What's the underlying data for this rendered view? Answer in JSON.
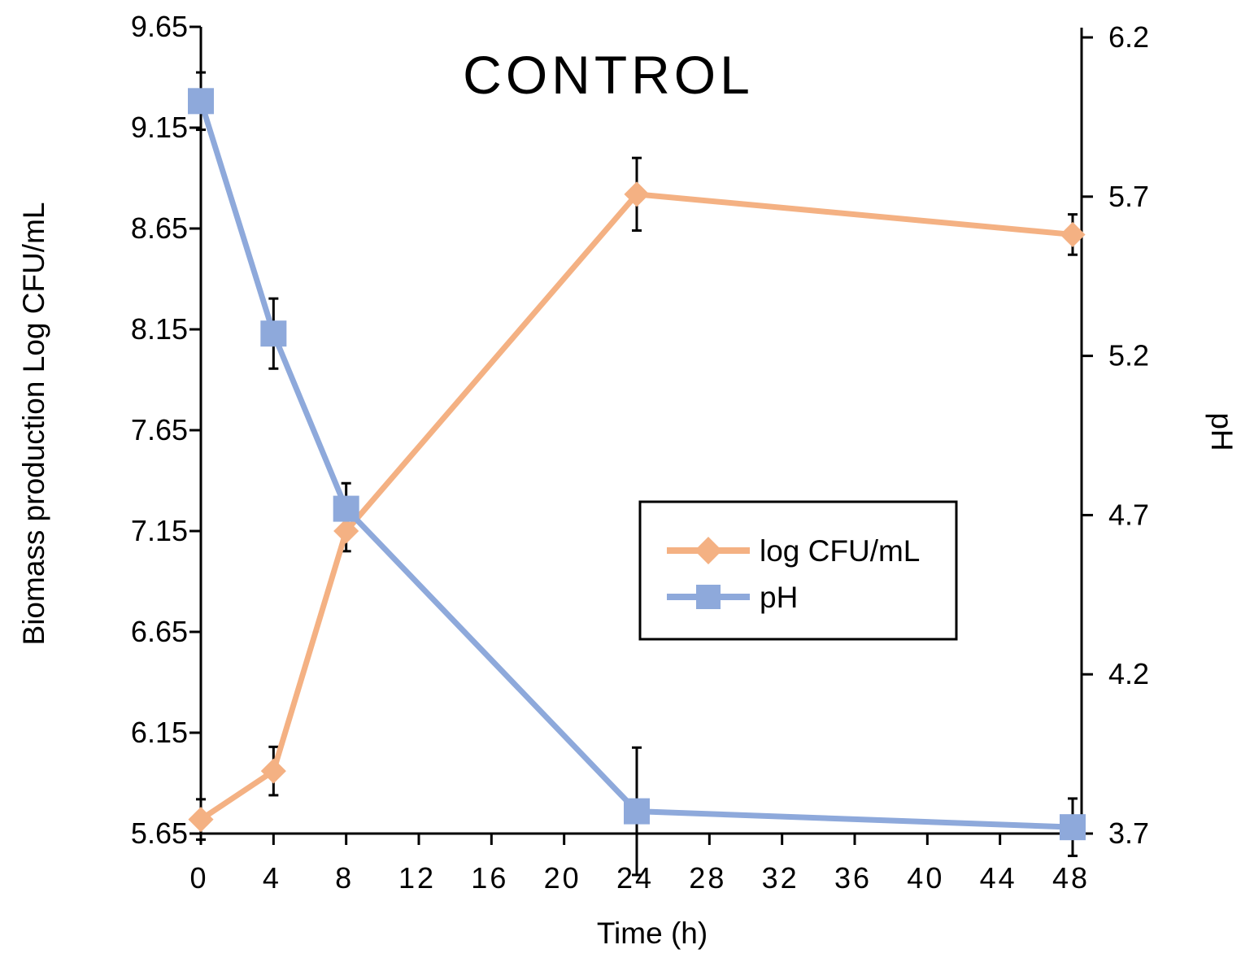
{
  "chart_data": {
    "type": "line",
    "title": "CONTROL",
    "xlabel": "Time (h)",
    "ylabel": "Biomass  production  Log CFU/mL",
    "y2label": "pH",
    "xlim": [
      0,
      48
    ],
    "ylim": [
      5.65,
      9.65
    ],
    "y2lim": [
      3.7,
      6.2
    ],
    "x_ticks": [
      0,
      4,
      8,
      12,
      16,
      20,
      24,
      28,
      32,
      36,
      40,
      44,
      48
    ],
    "x_tick_labels": [
      "0",
      "4",
      "8",
      "12",
      "16",
      "20",
      "24",
      "28",
      "32",
      "36",
      "40",
      "44",
      "48"
    ],
    "y_ticks": [
      5.65,
      6.15,
      6.65,
      7.15,
      7.65,
      8.15,
      8.65,
      9.15,
      9.65
    ],
    "y_tick_labels": [
      "5.65",
      "6.15",
      "6.65",
      "7.15",
      "7.65",
      "8.15",
      "8.65",
      "9.15",
      "9.65"
    ],
    "y2_ticks": [
      3.7,
      4.2,
      4.7,
      5.2,
      5.7,
      6.2
    ],
    "y2_tick_labels": [
      "3.7",
      "4.2",
      "4.7",
      "5.2",
      "5.7",
      "6.2"
    ],
    "legend_position": "center-right",
    "series": [
      {
        "name": "log CFU/mL",
        "axis": "left",
        "marker": "diamond",
        "color": "#F4B183",
        "x": [
          0,
          4,
          8,
          24,
          48
        ],
        "values": [
          5.72,
          5.96,
          7.15,
          8.82,
          8.62
        ],
        "errors": [
          0.1,
          0.12,
          0.1,
          0.18,
          0.1
        ]
      },
      {
        "name": "pH",
        "axis": "right",
        "marker": "square",
        "color": "#8EA9DB",
        "x": [
          0,
          4,
          8,
          24,
          48
        ],
        "values": [
          6.0,
          5.27,
          4.72,
          3.77,
          3.72
        ],
        "errors": [
          0.09,
          0.11,
          0.08,
          0.2,
          0.09
        ]
      }
    ]
  }
}
